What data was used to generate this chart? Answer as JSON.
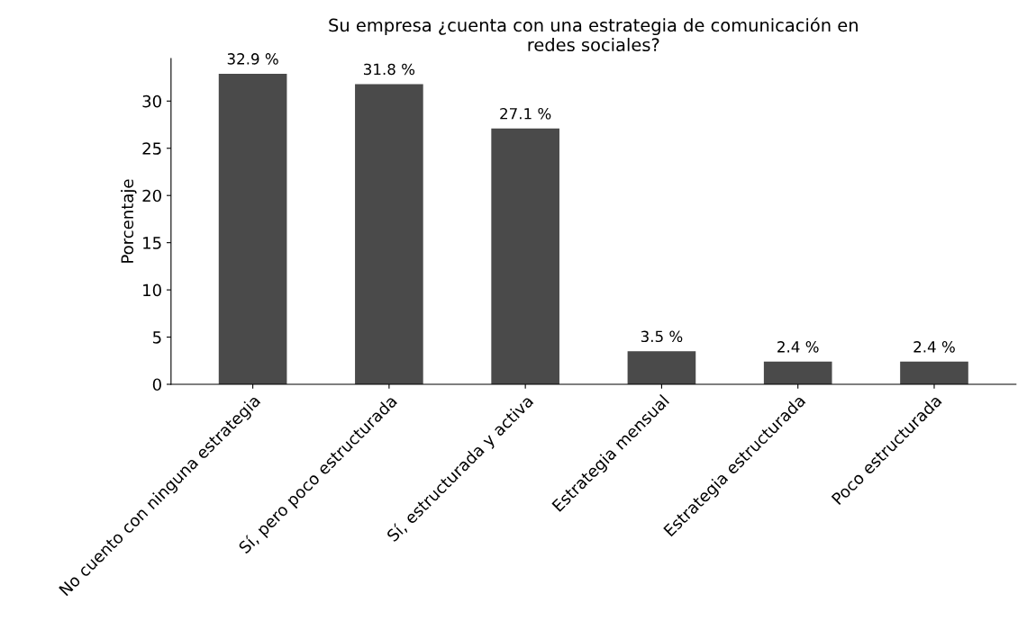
{
  "chart_data": {
    "type": "bar",
    "title": "Su empresa ¿cuenta con una estrategia de comunicación en\nredes sociales?",
    "ylabel": "Porcentaje",
    "categories": [
      "No cuento con ninguna estrategia",
      "Sí, pero poco estructurada",
      "Sí, estructurada y activa",
      "Estrategia mensual",
      "Estrategia estructurada",
      "Poco estructurada"
    ],
    "values": [
      32.9,
      31.8,
      27.1,
      3.5,
      2.4,
      2.4
    ],
    "value_labels": [
      "32.9 %",
      "31.8 %",
      "27.1 %",
      "3.5 %",
      "2.4 %",
      "2.4 %"
    ],
    "color": "#4a4a4a",
    "ylim": [
      0,
      34.5
    ],
    "yticks": [
      0,
      5,
      10,
      15,
      20,
      25,
      30
    ],
    "grid": false,
    "legend": false
  }
}
